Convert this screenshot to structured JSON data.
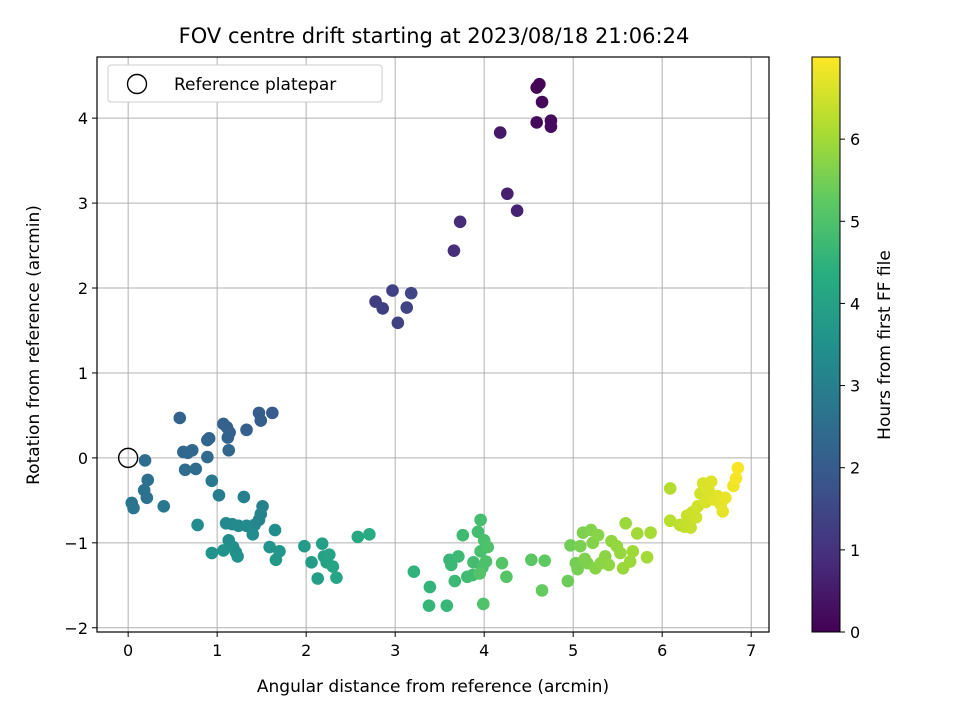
{
  "chart_data": {
    "type": "scatter",
    "title": "FOV centre drift starting at 2023/08/18 21:06:24",
    "xlabel": "Angular distance from reference (arcmin)",
    "ylabel": "Rotation from reference (arcmin)",
    "xlim": [
      -0.35,
      7.2
    ],
    "ylim": [
      -2.05,
      4.72
    ],
    "xticks": [
      0,
      1,
      2,
      3,
      4,
      5,
      6,
      7
    ],
    "yticks": [
      -2,
      -1,
      0,
      1,
      2,
      3,
      4
    ],
    "grid": true,
    "legend": {
      "position": "top-left",
      "label": "Reference platepar"
    },
    "reference_point": {
      "x": 0,
      "y": 0
    },
    "colorbar": {
      "label": "Hours from first FF file",
      "range": [
        0,
        7
      ],
      "ticks": [
        0,
        1,
        2,
        3,
        4,
        5,
        6
      ],
      "colormap": "viridis"
    },
    "points": [
      {
        "x": 4.59,
        "y": 4.36,
        "c": 0.05
      },
      {
        "x": 4.62,
        "y": 4.4,
        "c": 0.08
      },
      {
        "x": 4.65,
        "y": 4.19,
        "c": 0.12
      },
      {
        "x": 4.59,
        "y": 3.95,
        "c": 0.15
      },
      {
        "x": 4.75,
        "y": 3.97,
        "c": 0.18
      },
      {
        "x": 4.75,
        "y": 3.9,
        "c": 0.22
      },
      {
        "x": 4.18,
        "y": 3.83,
        "c": 0.45
      },
      {
        "x": 4.26,
        "y": 3.11,
        "c": 0.6
      },
      {
        "x": 4.37,
        "y": 2.91,
        "c": 0.68
      },
      {
        "x": 3.73,
        "y": 2.78,
        "c": 0.85
      },
      {
        "x": 3.66,
        "y": 2.44,
        "c": 0.95
      },
      {
        "x": 2.78,
        "y": 1.84,
        "c": 1.25
      },
      {
        "x": 2.86,
        "y": 1.76,
        "c": 1.3
      },
      {
        "x": 2.97,
        "y": 1.97,
        "c": 1.35
      },
      {
        "x": 3.03,
        "y": 1.59,
        "c": 1.38
      },
      {
        "x": 3.13,
        "y": 1.77,
        "c": 1.42
      },
      {
        "x": 3.18,
        "y": 1.94,
        "c": 1.45
      },
      {
        "x": 1.62,
        "y": 0.53,
        "c": 2.0
      },
      {
        "x": 1.47,
        "y": 0.53,
        "c": 2.05
      },
      {
        "x": 1.49,
        "y": 0.44,
        "c": 2.08
      },
      {
        "x": 1.33,
        "y": 0.33,
        "c": 2.1
      },
      {
        "x": 1.07,
        "y": 0.4,
        "c": 2.12
      },
      {
        "x": 1.11,
        "y": 0.36,
        "c": 2.15
      },
      {
        "x": 1.14,
        "y": 0.3,
        "c": 2.18
      },
      {
        "x": 1.12,
        "y": 0.24,
        "c": 2.2
      },
      {
        "x": 0.58,
        "y": 0.47,
        "c": 2.22
      },
      {
        "x": 0.89,
        "y": 0.21,
        "c": 2.25
      },
      {
        "x": 0.91,
        "y": 0.23,
        "c": 2.27
      },
      {
        "x": 1.13,
        "y": 0.09,
        "c": 2.3
      },
      {
        "x": 0.62,
        "y": 0.07,
        "c": 2.32
      },
      {
        "x": 0.72,
        "y": 0.09,
        "c": 2.35
      },
      {
        "x": 0.67,
        "y": 0.06,
        "c": 2.37
      },
      {
        "x": 0.89,
        "y": 0.01,
        "c": 2.4
      },
      {
        "x": 0.64,
        "y": -0.14,
        "c": 2.45
      },
      {
        "x": 0.76,
        "y": -0.13,
        "c": 2.48
      },
      {
        "x": 0.19,
        "y": -0.03,
        "c": 2.5
      },
      {
        "x": 0.22,
        "y": -0.26,
        "c": 2.55
      },
      {
        "x": 0.18,
        "y": -0.38,
        "c": 2.6
      },
      {
        "x": 0.21,
        "y": -0.47,
        "c": 2.62
      },
      {
        "x": 0.04,
        "y": -0.53,
        "c": 2.65
      },
      {
        "x": 0.06,
        "y": -0.59,
        "c": 2.7
      },
      {
        "x": 0.4,
        "y": -0.57,
        "c": 2.75
      },
      {
        "x": 0.94,
        "y": -0.27,
        "c": 2.8
      },
      {
        "x": 1.02,
        "y": -0.44,
        "c": 2.9
      },
      {
        "x": 1.3,
        "y": -0.46,
        "c": 3.0
      },
      {
        "x": 1.51,
        "y": -0.57,
        "c": 3.05
      },
      {
        "x": 1.49,
        "y": -0.66,
        "c": 3.1
      },
      {
        "x": 1.47,
        "y": -0.73,
        "c": 3.15
      },
      {
        "x": 1.42,
        "y": -0.79,
        "c": 3.2
      },
      {
        "x": 1.1,
        "y": -0.77,
        "c": 3.25
      },
      {
        "x": 1.17,
        "y": -0.78,
        "c": 3.28
      },
      {
        "x": 1.24,
        "y": -0.8,
        "c": 3.3
      },
      {
        "x": 1.33,
        "y": -0.8,
        "c": 3.32
      },
      {
        "x": 1.4,
        "y": -0.9,
        "c": 3.35
      },
      {
        "x": 0.78,
        "y": -0.79,
        "c": 3.37
      },
      {
        "x": 1.65,
        "y": -0.85,
        "c": 3.4
      },
      {
        "x": 1.13,
        "y": -0.97,
        "c": 3.42
      },
      {
        "x": 1.18,
        "y": -1.05,
        "c": 3.45
      },
      {
        "x": 1.21,
        "y": -1.11,
        "c": 3.48
      },
      {
        "x": 1.23,
        "y": -1.16,
        "c": 3.5
      },
      {
        "x": 1.07,
        "y": -1.09,
        "c": 3.52
      },
      {
        "x": 0.94,
        "y": -1.12,
        "c": 3.55
      },
      {
        "x": 1.59,
        "y": -1.05,
        "c": 3.6
      },
      {
        "x": 1.7,
        "y": -1.1,
        "c": 3.65
      },
      {
        "x": 1.66,
        "y": -1.2,
        "c": 3.7
      },
      {
        "x": 1.98,
        "y": -1.04,
        "c": 3.8
      },
      {
        "x": 2.06,
        "y": -1.23,
        "c": 3.85
      },
      {
        "x": 2.13,
        "y": -1.42,
        "c": 3.9
      },
      {
        "x": 2.18,
        "y": -1.01,
        "c": 3.95
      },
      {
        "x": 2.2,
        "y": -1.16,
        "c": 4.0
      },
      {
        "x": 2.23,
        "y": -1.23,
        "c": 4.02
      },
      {
        "x": 2.26,
        "y": -1.14,
        "c": 4.05
      },
      {
        "x": 2.3,
        "y": -1.28,
        "c": 4.08
      },
      {
        "x": 2.34,
        "y": -1.41,
        "c": 4.1
      },
      {
        "x": 2.58,
        "y": -0.93,
        "c": 4.2
      },
      {
        "x": 2.71,
        "y": -0.9,
        "c": 4.3
      },
      {
        "x": 3.21,
        "y": -1.34,
        "c": 4.5
      },
      {
        "x": 3.39,
        "y": -1.52,
        "c": 4.55
      },
      {
        "x": 3.38,
        "y": -1.74,
        "c": 4.6
      },
      {
        "x": 3.58,
        "y": -1.74,
        "c": 4.62
      },
      {
        "x": 3.61,
        "y": -1.2,
        "c": 4.65
      },
      {
        "x": 3.63,
        "y": -1.26,
        "c": 4.68
      },
      {
        "x": 3.67,
        "y": -1.45,
        "c": 4.7
      },
      {
        "x": 3.71,
        "y": -1.16,
        "c": 4.72
      },
      {
        "x": 3.76,
        "y": -0.91,
        "c": 4.75
      },
      {
        "x": 3.81,
        "y": -1.4,
        "c": 4.78
      },
      {
        "x": 3.87,
        "y": -1.38,
        "c": 4.8
      },
      {
        "x": 3.88,
        "y": -1.23,
        "c": 4.82
      },
      {
        "x": 3.93,
        "y": -0.87,
        "c": 4.85
      },
      {
        "x": 3.96,
        "y": -0.73,
        "c": 4.87
      },
      {
        "x": 3.96,
        "y": -1.1,
        "c": 4.9
      },
      {
        "x": 3.98,
        "y": -1.29,
        "c": 4.92
      },
      {
        "x": 4.0,
        "y": -0.97,
        "c": 4.95
      },
      {
        "x": 4.02,
        "y": -1.22,
        "c": 4.97
      },
      {
        "x": 4.04,
        "y": -1.05,
        "c": 5.0
      },
      {
        "x": 3.99,
        "y": -1.72,
        "c": 5.02
      },
      {
        "x": 3.95,
        "y": -1.36,
        "c": 5.05
      },
      {
        "x": 4.2,
        "y": -1.24,
        "c": 5.1
      },
      {
        "x": 4.25,
        "y": -1.4,
        "c": 5.12
      },
      {
        "x": 4.53,
        "y": -1.2,
        "c": 5.2
      },
      {
        "x": 4.68,
        "y": -1.21,
        "c": 5.25
      },
      {
        "x": 4.65,
        "y": -1.56,
        "c": 5.3
      },
      {
        "x": 4.94,
        "y": -1.45,
        "c": 5.4
      },
      {
        "x": 4.97,
        "y": -1.03,
        "c": 5.45
      },
      {
        "x": 5.03,
        "y": -1.24,
        "c": 5.5
      },
      {
        "x": 5.05,
        "y": -1.31,
        "c": 5.52
      },
      {
        "x": 5.08,
        "y": -1.04,
        "c": 5.55
      },
      {
        "x": 5.11,
        "y": -0.88,
        "c": 5.58
      },
      {
        "x": 5.13,
        "y": -1.19,
        "c": 5.6
      },
      {
        "x": 5.16,
        "y": -1.24,
        "c": 5.62
      },
      {
        "x": 5.2,
        "y": -0.85,
        "c": 5.65
      },
      {
        "x": 5.22,
        "y": -1.0,
        "c": 5.67
      },
      {
        "x": 5.25,
        "y": -1.3,
        "c": 5.7
      },
      {
        "x": 5.28,
        "y": -0.91,
        "c": 5.72
      },
      {
        "x": 5.31,
        "y": -1.24,
        "c": 5.75
      },
      {
        "x": 5.36,
        "y": -1.16,
        "c": 5.77
      },
      {
        "x": 5.4,
        "y": -1.26,
        "c": 5.8
      },
      {
        "x": 5.43,
        "y": -0.98,
        "c": 5.82
      },
      {
        "x": 5.49,
        "y": -1.04,
        "c": 5.85
      },
      {
        "x": 5.53,
        "y": -1.12,
        "c": 5.87
      },
      {
        "x": 5.56,
        "y": -1.3,
        "c": 5.9
      },
      {
        "x": 5.59,
        "y": -0.77,
        "c": 5.92
      },
      {
        "x": 5.64,
        "y": -1.22,
        "c": 5.95
      },
      {
        "x": 5.67,
        "y": -1.1,
        "c": 5.97
      },
      {
        "x": 5.72,
        "y": -0.89,
        "c": 6.0
      },
      {
        "x": 5.83,
        "y": -1.17,
        "c": 6.02
      },
      {
        "x": 5.87,
        "y": -0.88,
        "c": 6.05
      },
      {
        "x": 6.09,
        "y": -0.36,
        "c": 6.2
      },
      {
        "x": 6.09,
        "y": -0.74,
        "c": 6.25
      },
      {
        "x": 6.2,
        "y": -0.79,
        "c": 6.3
      },
      {
        "x": 6.25,
        "y": -0.81,
        "c": 6.35
      },
      {
        "x": 6.28,
        "y": -0.75,
        "c": 6.38
      },
      {
        "x": 6.32,
        "y": -0.82,
        "c": 6.4
      },
      {
        "x": 6.28,
        "y": -0.68,
        "c": 6.42
      },
      {
        "x": 6.34,
        "y": -0.64,
        "c": 6.45
      },
      {
        "x": 6.38,
        "y": -0.7,
        "c": 6.48
      },
      {
        "x": 6.4,
        "y": -0.57,
        "c": 6.5
      },
      {
        "x": 6.43,
        "y": -0.42,
        "c": 6.55
      },
      {
        "x": 6.46,
        "y": -0.3,
        "c": 6.58
      },
      {
        "x": 6.49,
        "y": -0.52,
        "c": 6.6
      },
      {
        "x": 6.52,
        "y": -0.38,
        "c": 6.62
      },
      {
        "x": 6.55,
        "y": -0.28,
        "c": 6.65
      },
      {
        "x": 6.58,
        "y": -0.49,
        "c": 6.68
      },
      {
        "x": 6.62,
        "y": -0.45,
        "c": 6.7
      },
      {
        "x": 6.66,
        "y": -0.55,
        "c": 6.72
      },
      {
        "x": 6.68,
        "y": -0.63,
        "c": 6.75
      },
      {
        "x": 6.71,
        "y": -0.47,
        "c": 6.78
      },
      {
        "x": 6.8,
        "y": -0.33,
        "c": 6.85
      },
      {
        "x": 6.83,
        "y": -0.24,
        "c": 6.9
      },
      {
        "x": 6.85,
        "y": -0.12,
        "c": 6.95
      }
    ]
  }
}
